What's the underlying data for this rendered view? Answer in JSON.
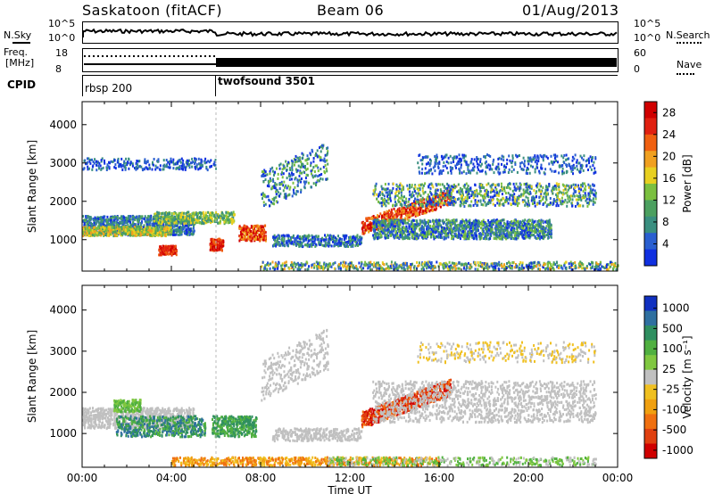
{
  "header": {
    "station": "Saskatoon (fitACF)",
    "beam": "Beam 06",
    "date": "01/Aug/2013"
  },
  "top_panels": {
    "nsky_label": "N.Sky",
    "nsky_tick_top": "10^5",
    "nsky_tick_bottom": "10^0",
    "nsearch_label": "N.Search",
    "nsearch_tick_top": "10^5",
    "nsearch_tick_bottom": "10^0",
    "freq_label": "Freq.",
    "freq_unit": "[MHz]",
    "freq_tick_top": "18",
    "freq_tick_bottom": "8",
    "nave_label": "Nave",
    "nave_tick_top": "60",
    "nave_tick_bottom": "0",
    "cpid_label": "CPID",
    "cpid_1": "rbsp 200",
    "cpid_2": "twofsound 3501"
  },
  "colors": {
    "power_scale": [
      "#1030e0",
      "#2a5fd0",
      "#3a8f80",
      "#4ca060",
      "#7bc040",
      "#e8d020",
      "#f0a020",
      "#f06010",
      "#e02010",
      "#d00000"
    ],
    "velocity_scale": [
      "#1030c0",
      "#2f70a0",
      "#2f8f60",
      "#50b040",
      "#80c840",
      "#c0c0c0",
      "#f0c020",
      "#f0a010",
      "#f07010",
      "#e04010",
      "#d00000"
    ]
  },
  "chart_data": [
    {
      "type": "heatmap",
      "name": "power",
      "ylabel": "Slant Range [km]",
      "yticks": [
        1000,
        2000,
        3000,
        4000
      ],
      "ylim": [
        180,
        4600
      ],
      "xlim": [
        0,
        24
      ],
      "colorbar_label": "Power [dB]",
      "colorbar_ticks": [
        4,
        8,
        12,
        16,
        20,
        24,
        28
      ],
      "colorbar_range": [
        0,
        30
      ]
    },
    {
      "type": "heatmap",
      "name": "velocity",
      "ylabel": "Slant Range [km]",
      "yticks": [
        1000,
        2000,
        3000,
        4000
      ],
      "ylim": [
        180,
        4600
      ],
      "xlim": [
        0,
        24
      ],
      "xlabel": "Time UT",
      "xticks": [
        "00:00",
        "04:00",
        "08:00",
        "12:00",
        "16:00",
        "20:00",
        "00:00"
      ],
      "colorbar_label": "Velocity [m s⁻¹]",
      "colorbar_ticks": [
        1000,
        500,
        100,
        25,
        -25,
        -100,
        -500,
        -1000
      ]
    }
  ]
}
